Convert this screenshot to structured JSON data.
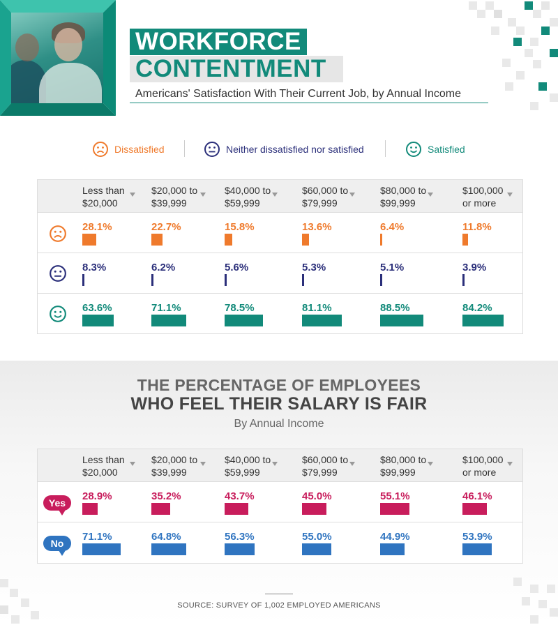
{
  "header": {
    "title_line1": "WORKFORCE",
    "title_line2": "CONTENTMENT",
    "subtitle": "Americans' Satisfaction With Their Current Job, by Annual Income"
  },
  "legend": {
    "dissatisfied": "Dissatisfied",
    "neutral": "Neither dissatisfied nor satisfied",
    "satisfied": "Satisfied"
  },
  "income_brackets": [
    {
      "line1": "Less than",
      "line2": "$20,000"
    },
    {
      "line1": "$20,000 to",
      "line2": "$39,999"
    },
    {
      "line1": "$40,000 to",
      "line2": "$59,999"
    },
    {
      "line1": "$60,000 to",
      "line2": "$79,999"
    },
    {
      "line1": "$80,000 to",
      "line2": "$99,999"
    },
    {
      "line1": "$100,000",
      "line2": "or more"
    }
  ],
  "colors": {
    "dissatisfied": "#ef7a2c",
    "neutral": "#2b2f7a",
    "satisfied": "#128a7a",
    "yes": "#c81d5c",
    "no": "#2f74c0",
    "teal": "#128a7a"
  },
  "section2": {
    "title_line1": "THE PERCENTAGE OF EMPLOYEES",
    "title_line2": "WHO FEEL THEIR SALARY IS FAIR",
    "subtitle": "By Annual Income",
    "yes_label": "Yes",
    "no_label": "No"
  },
  "source": "SOURCE: SURVEY OF 1,002 EMPLOYED AMERICANS",
  "chart_data": [
    {
      "type": "table",
      "title": "Americans' Satisfaction With Their Current Job, by Annual Income",
      "categories": [
        "Less than $20,000",
        "$20,000 to $39,999",
        "$40,000 to $59,999",
        "$60,000 to $79,999",
        "$80,000 to $99,999",
        "$100,000 or more"
      ],
      "series": [
        {
          "name": "Dissatisfied",
          "values": [
            28.1,
            22.7,
            15.8,
            13.6,
            6.4,
            11.8
          ],
          "labels": [
            "28.1%",
            "22.7%",
            "15.8%",
            "13.6%",
            "6.4%",
            "11.8%"
          ]
        },
        {
          "name": "Neither dissatisfied nor satisfied",
          "values": [
            8.3,
            6.2,
            5.6,
            5.3,
            5.1,
            3.9
          ],
          "labels": [
            "8.3%",
            "6.2%",
            "5.6%",
            "5.3%",
            "5.1%",
            "3.9%"
          ]
        },
        {
          "name": "Satisfied",
          "values": [
            63.6,
            71.1,
            78.5,
            81.1,
            88.5,
            84.2
          ],
          "labels": [
            "63.6%",
            "71.1%",
            "78.5%",
            "81.1%",
            "88.5%",
            "84.2%"
          ]
        }
      ]
    },
    {
      "type": "table",
      "title": "The Percentage of Employees Who Feel Their Salary Is Fair",
      "categories": [
        "Less than $20,000",
        "$20,000 to $39,999",
        "$40,000 to $59,999",
        "$60,000 to $79,999",
        "$80,000 to $99,999",
        "$100,000 or more"
      ],
      "series": [
        {
          "name": "Yes",
          "values": [
            28.9,
            35.2,
            43.7,
            45.0,
            55.1,
            46.1
          ],
          "labels": [
            "28.9%",
            "35.2%",
            "43.7%",
            "45.0%",
            "55.1%",
            "46.1%"
          ]
        },
        {
          "name": "No",
          "values": [
            71.1,
            64.8,
            56.3,
            55.0,
            44.9,
            53.9
          ],
          "labels": [
            "71.1%",
            "64.8%",
            "56.3%",
            "55.0%",
            "44.9%",
            "53.9%"
          ]
        }
      ]
    }
  ]
}
